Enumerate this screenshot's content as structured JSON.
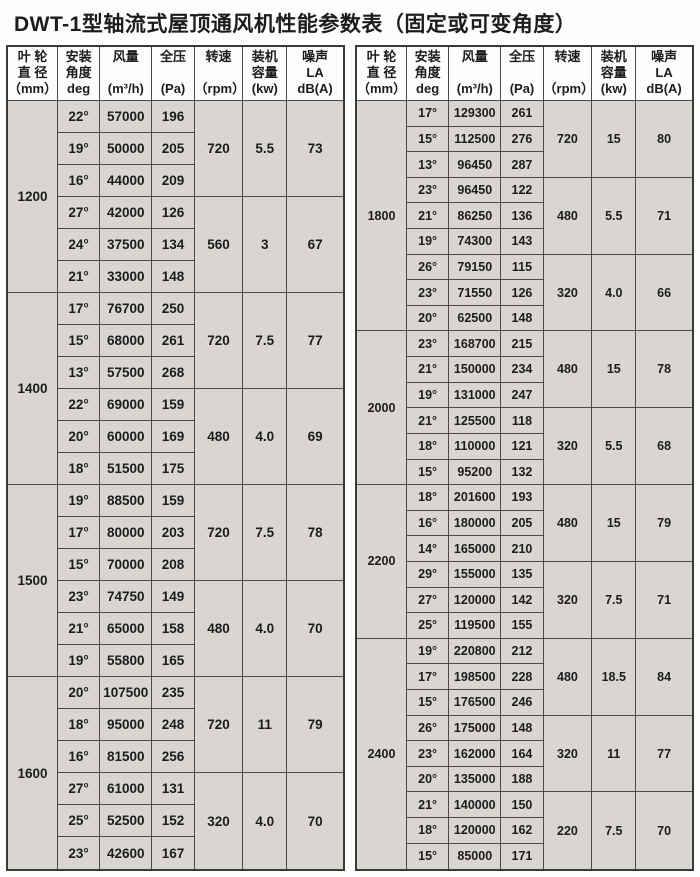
{
  "title": "DWT-1型轴流式屋顶通风机性能参数表（固定或可变角度）",
  "colors": {
    "cell_background": "#d9d6d2",
    "header_background": "#fdfdfd",
    "border": "#4a4a48",
    "text": "#1c1c1c"
  },
  "header_columns": [
    {
      "id": "diameter",
      "lines": [
        "叶 轮",
        "直 径",
        "（mm）"
      ]
    },
    {
      "id": "angle",
      "lines": [
        "安装",
        "角度",
        "deg"
      ]
    },
    {
      "id": "flow",
      "lines": [
        "风量",
        "(m³/h)"
      ]
    },
    {
      "id": "pressure",
      "lines": [
        "全压",
        "(Pa)"
      ]
    },
    {
      "id": "speed",
      "lines": [
        "转速",
        "（rpm）"
      ]
    },
    {
      "id": "capacity",
      "lines": [
        "装机",
        "容量",
        "(kw)"
      ]
    },
    {
      "id": "noise",
      "lines": [
        "噪声",
        "LA",
        "dB(A)"
      ]
    }
  ],
  "tables": [
    {
      "side": "left",
      "groups": [
        {
          "diameter": "1200",
          "subgroups": [
            {
              "speed": "720",
              "capacity": "5.5",
              "noise": "73",
              "rows": [
                [
                  "22°",
                  "57000",
                  "196"
                ],
                [
                  "19°",
                  "50000",
                  "205"
                ],
                [
                  "16°",
                  "44000",
                  "209"
                ]
              ]
            },
            {
              "speed": "560",
              "capacity": "3",
              "noise": "67",
              "rows": [
                [
                  "27°",
                  "42000",
                  "126"
                ],
                [
                  "24°",
                  "37500",
                  "134"
                ],
                [
                  "21°",
                  "33000",
                  "148"
                ]
              ]
            }
          ]
        },
        {
          "diameter": "1400",
          "subgroups": [
            {
              "speed": "720",
              "capacity": "7.5",
              "noise": "77",
              "rows": [
                [
                  "17°",
                  "76700",
                  "250"
                ],
                [
                  "15°",
                  "68000",
                  "261"
                ],
                [
                  "13°",
                  "57500",
                  "268"
                ]
              ]
            },
            {
              "speed": "480",
              "capacity": "4.0",
              "noise": "69",
              "rows": [
                [
                  "22°",
                  "69000",
                  "159"
                ],
                [
                  "20°",
                  "60000",
                  "169"
                ],
                [
                  "18°",
                  "51500",
                  "175"
                ]
              ]
            }
          ]
        },
        {
          "diameter": "1500",
          "subgroups": [
            {
              "speed": "720",
              "capacity": "7.5",
              "noise": "78",
              "rows": [
                [
                  "19°",
                  "88500",
                  "159"
                ],
                [
                  "17°",
                  "80000",
                  "203"
                ],
                [
                  "15°",
                  "70000",
                  "208"
                ]
              ]
            },
            {
              "speed": "480",
              "capacity": "4.0",
              "noise": "70",
              "rows": [
                [
                  "23°",
                  "74750",
                  "149"
                ],
                [
                  "21°",
                  "65000",
                  "158"
                ],
                [
                  "19°",
                  "55800",
                  "165"
                ]
              ]
            }
          ]
        },
        {
          "diameter": "1600",
          "subgroups": [
            {
              "speed": "720",
              "capacity": "11",
              "noise": "79",
              "rows": [
                [
                  "20°",
                  "107500",
                  "235"
                ],
                [
                  "18°",
                  "95000",
                  "248"
                ],
                [
                  "16°",
                  "81500",
                  "256"
                ]
              ]
            },
            {
              "speed": "320",
              "capacity": "4.0",
              "noise": "70",
              "rows": [
                [
                  "27°",
                  "61000",
                  "131"
                ],
                [
                  "25°",
                  "52500",
                  "152"
                ],
                [
                  "23°",
                  "42600",
                  "167"
                ]
              ]
            }
          ]
        }
      ]
    },
    {
      "side": "right",
      "groups": [
        {
          "diameter": "1800",
          "subgroups": [
            {
              "speed": "720",
              "capacity": "15",
              "noise": "80",
              "rows": [
                [
                  "17°",
                  "129300",
                  "261"
                ],
                [
                  "15°",
                  "112500",
                  "276"
                ],
                [
                  "13°",
                  "96450",
                  "287"
                ]
              ]
            },
            {
              "speed": "480",
              "capacity": "5.5",
              "noise": "71",
              "rows": [
                [
                  "23°",
                  "96450",
                  "122"
                ],
                [
                  "21°",
                  "86250",
                  "136"
                ],
                [
                  "19°",
                  "74300",
                  "143"
                ]
              ]
            },
            {
              "speed": "320",
              "capacity": "4.0",
              "noise": "66",
              "rows": [
                [
                  "26°",
                  "79150",
                  "115"
                ],
                [
                  "23°",
                  "71550",
                  "126"
                ],
                [
                  "20°",
                  "62500",
                  "148"
                ]
              ]
            }
          ]
        },
        {
          "diameter": "2000",
          "subgroups": [
            {
              "speed": "480",
              "capacity": "15",
              "noise": "78",
              "rows": [
                [
                  "23°",
                  "168700",
                  "215"
                ],
                [
                  "21°",
                  "150000",
                  "234"
                ],
                [
                  "19°",
                  "131000",
                  "247"
                ]
              ]
            },
            {
              "speed": "320",
              "capacity": "5.5",
              "noise": "68",
              "rows": [
                [
                  "21°",
                  "125500",
                  "118"
                ],
                [
                  "18°",
                  "110000",
                  "121"
                ],
                [
                  "15°",
                  "95200",
                  "132"
                ]
              ]
            }
          ]
        },
        {
          "diameter": "2200",
          "subgroups": [
            {
              "speed": "480",
              "capacity": "15",
              "noise": "79",
              "rows": [
                [
                  "18°",
                  "201600",
                  "193"
                ],
                [
                  "16°",
                  "180000",
                  "205"
                ],
                [
                  "14°",
                  "165000",
                  "210"
                ]
              ]
            },
            {
              "speed": "320",
              "capacity": "7.5",
              "noise": "71",
              "rows": [
                [
                  "29°",
                  "155000",
                  "135"
                ],
                [
                  "27°",
                  "120000",
                  "142"
                ],
                [
                  "25°",
                  "119500",
                  "155"
                ]
              ]
            }
          ]
        },
        {
          "diameter": "2400",
          "subgroups": [
            {
              "speed": "480",
              "capacity": "18.5",
              "noise": "84",
              "rows": [
                [
                  "19°",
                  "220800",
                  "212"
                ],
                [
                  "17°",
                  "198500",
                  "228"
                ],
                [
                  "15°",
                  "176500",
                  "246"
                ]
              ]
            },
            {
              "speed": "320",
              "capacity": "11",
              "noise": "77",
              "rows": [
                [
                  "26°",
                  "175000",
                  "148"
                ],
                [
                  "23°",
                  "162000",
                  "164"
                ],
                [
                  "20°",
                  "135000",
                  "188"
                ]
              ]
            },
            {
              "speed": "220",
              "capacity": "7.5",
              "noise": "70",
              "rows": [
                [
                  "21°",
                  "140000",
                  "150"
                ],
                [
                  "18°",
                  "120000",
                  "162"
                ],
                [
                  "15°",
                  "85000",
                  "171"
                ]
              ]
            }
          ]
        }
      ]
    }
  ]
}
